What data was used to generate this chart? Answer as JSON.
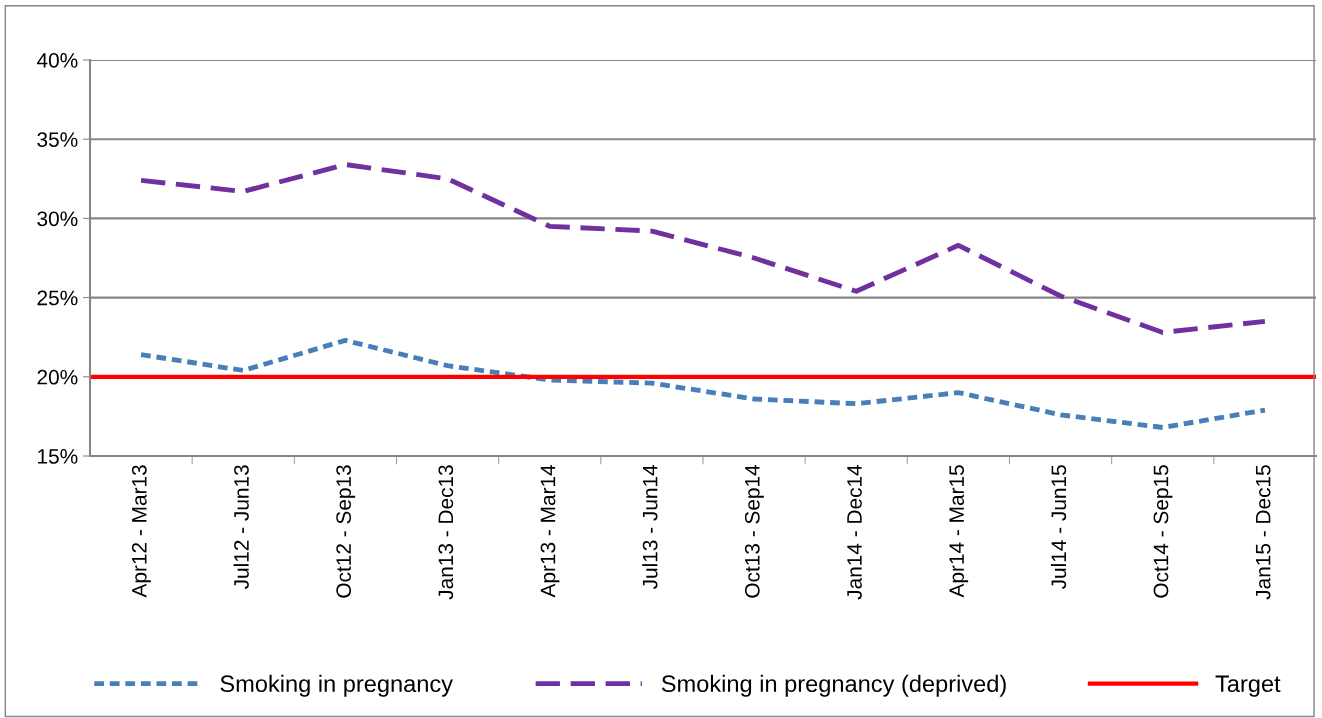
{
  "chart_data": {
    "type": "line",
    "categories": [
      "Apr12 - Mar13",
      "Jul12 - Jun13",
      "Oct12 - Sep13",
      "Jan13 - Dec13",
      "Apr13 - Mar14",
      "Jul13 - Jun14",
      "Oct13 - Sep14",
      "Jan14 - Dec14",
      "Apr14 - Mar15",
      "Jul14 - Jun15",
      "Oct14 - Sep15",
      "Jan15 - Dec15"
    ],
    "series": [
      {
        "name": "Smoking in pregnancy",
        "color": "#4a7ebb",
        "line_style": "dotted",
        "values": [
          21.4,
          20.4,
          22.3,
          20.7,
          19.8,
          19.6,
          18.6,
          18.3,
          19.0,
          17.6,
          16.8,
          17.9
        ]
      },
      {
        "name": "Smoking in pregnancy (deprived)",
        "color": "#7030a0",
        "line_style": "dashed",
        "values": [
          32.4,
          31.7,
          33.4,
          32.5,
          29.5,
          29.2,
          27.5,
          25.4,
          28.3,
          25.1,
          22.8,
          23.5
        ]
      }
    ],
    "ref_lines": [
      {
        "axis": "y",
        "value": 20,
        "label": "Target",
        "color": "#ff0000",
        "line_style": "solid"
      }
    ],
    "ylim": [
      15,
      40
    ],
    "yticks": [
      {
        "value": 15,
        "label": "15%"
      },
      {
        "value": 20,
        "label": "20%"
      },
      {
        "value": 25,
        "label": "25%"
      },
      {
        "value": 30,
        "label": "30%"
      },
      {
        "value": 35,
        "label": "35%"
      },
      {
        "value": 40,
        "label": "40%"
      }
    ],
    "grid": "y",
    "legend": "bottom",
    "marker": "none"
  }
}
